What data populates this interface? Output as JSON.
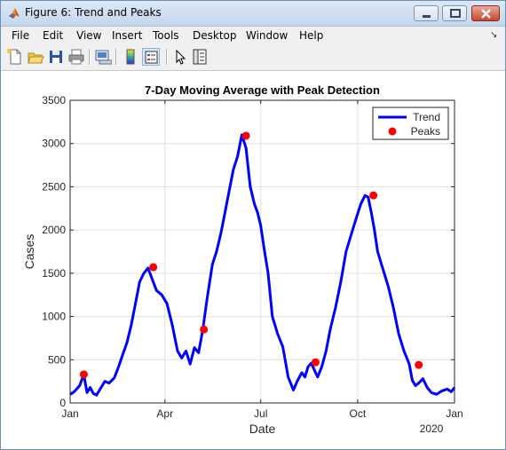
{
  "window": {
    "title": "Figure 6: Trend and Peaks",
    "app_icon": "matlab-logo-icon",
    "controls": [
      "minimize-icon",
      "maximize-icon",
      "close-icon"
    ]
  },
  "menubar": {
    "items": [
      "File",
      "Edit",
      "View",
      "Insert",
      "Tools",
      "Desktop",
      "Window",
      "Help"
    ],
    "dock_glyph": "↘"
  },
  "toolbar": {
    "buttons": [
      {
        "name": "new-figure-icon"
      },
      {
        "name": "open-file-icon"
      },
      {
        "name": "save-icon"
      },
      {
        "name": "print-icon"
      },
      {
        "name": "link-plot-icon"
      },
      {
        "name": "insert-colorbar-icon"
      },
      {
        "name": "insert-legend-icon",
        "pressed": true
      },
      {
        "name": "edit-plot-arrow-icon"
      },
      {
        "name": "property-inspector-icon"
      }
    ]
  },
  "chart_data": {
    "type": "line",
    "title": "7-Day Moving Average with Peak Detection",
    "xlabel": "Date",
    "ylabel": "Cases",
    "xlim": [
      "2019-01-01",
      "2020-01-01"
    ],
    "ylim": [
      0,
      3500
    ],
    "x_ticks": [
      "Jan",
      "Apr",
      "Jul",
      "Oct",
      "Jan"
    ],
    "x_secondary_label": "2020",
    "y_ticks": [
      0,
      500,
      1000,
      1500,
      2000,
      2500,
      3000,
      3500
    ],
    "grid": true,
    "legend_position": "top-right",
    "colors": {
      "trend": "#0000ff",
      "peaks": "#ff0000"
    },
    "series": [
      {
        "name": "Trend",
        "style": "line",
        "x": [
          "2019-01-01",
          "2019-01-05",
          "2019-01-10",
          "2019-01-14",
          "2019-01-17",
          "2019-01-20",
          "2019-01-23",
          "2019-01-26",
          "2019-01-29",
          "2019-02-03",
          "2019-02-07",
          "2019-02-12",
          "2019-02-16",
          "2019-02-20",
          "2019-02-24",
          "2019-02-28",
          "2019-03-04",
          "2019-03-08",
          "2019-03-12",
          "2019-03-16",
          "2019-03-20",
          "2019-03-24",
          "2019-03-29",
          "2019-04-03",
          "2019-04-08",
          "2019-04-13",
          "2019-04-17",
          "2019-04-21",
          "2019-04-25",
          "2019-04-29",
          "2019-05-03",
          "2019-05-07",
          "2019-05-11",
          "2019-05-16",
          "2019-05-20",
          "2019-05-24",
          "2019-05-28",
          "2019-06-01",
          "2019-06-05",
          "2019-06-09",
          "2019-06-13",
          "2019-06-17",
          "2019-06-21",
          "2019-06-25",
          "2019-06-28",
          "2019-07-01",
          "2019-07-04",
          "2019-07-08",
          "2019-07-12",
          "2019-07-17",
          "2019-07-22",
          "2019-07-27",
          "2019-08-01",
          "2019-08-05",
          "2019-08-09",
          "2019-08-12",
          "2019-08-15",
          "2019-08-18",
          "2019-08-21",
          "2019-08-24",
          "2019-08-28",
          "2019-09-01",
          "2019-09-05",
          "2019-09-10",
          "2019-09-15",
          "2019-09-20",
          "2019-09-25",
          "2019-09-30",
          "2019-10-04",
          "2019-10-08",
          "2019-10-11",
          "2019-10-14",
          "2019-10-17",
          "2019-10-20",
          "2019-10-25",
          "2019-10-30",
          "2019-11-04",
          "2019-11-09",
          "2019-11-14",
          "2019-11-19",
          "2019-11-22",
          "2019-11-25",
          "2019-11-28",
          "2019-12-02",
          "2019-12-06",
          "2019-12-10",
          "2019-12-15",
          "2019-12-20",
          "2019-12-25",
          "2019-12-29",
          "2020-01-01"
        ],
        "y": [
          100,
          130,
          200,
          330,
          120,
          180,
          110,
          90,
          150,
          250,
          230,
          290,
          420,
          560,
          700,
          900,
          1150,
          1400,
          1500,
          1560,
          1430,
          1300,
          1250,
          1150,
          900,
          600,
          520,
          600,
          450,
          640,
          580,
          850,
          1200,
          1600,
          1750,
          1950,
          2200,
          2450,
          2700,
          2850,
          3100,
          2950,
          2500,
          2300,
          2200,
          2050,
          1800,
          1500,
          1000,
          800,
          650,
          300,
          150,
          260,
          350,
          300,
          420,
          460,
          380,
          300,
          420,
          600,
          850,
          1100,
          1400,
          1750,
          1950,
          2150,
          2300,
          2400,
          2380,
          2200,
          2000,
          1750,
          1550,
          1350,
          1100,
          800,
          600,
          450,
          260,
          200,
          230,
          280,
          180,
          120,
          100,
          140,
          160,
          130,
          180
        ]
      },
      {
        "name": "Peaks",
        "style": "marker",
        "x": [
          "2019-01-14",
          "2019-03-21",
          "2019-05-08",
          "2019-06-17",
          "2019-08-22",
          "2019-10-16",
          "2019-11-28"
        ],
        "y": [
          330,
          1570,
          850,
          3090,
          470,
          2400,
          440
        ]
      }
    ]
  }
}
